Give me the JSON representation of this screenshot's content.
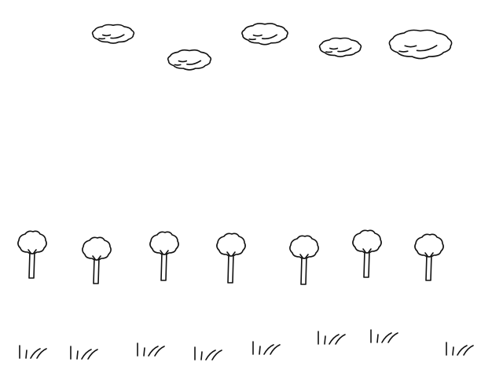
{
  "scene": {
    "background": "#ffffff",
    "ink_color": "#111111",
    "clouds": [
      {
        "name": "cloud-1"
      },
      {
        "name": "cloud-2"
      },
      {
        "name": "cloud-3"
      },
      {
        "name": "cloud-4"
      },
      {
        "name": "cloud-5"
      }
    ],
    "trees": [
      {
        "name": "tree-1"
      },
      {
        "name": "tree-2"
      },
      {
        "name": "tree-3"
      },
      {
        "name": "tree-4"
      },
      {
        "name": "tree-5"
      },
      {
        "name": "tree-6"
      },
      {
        "name": "tree-7"
      }
    ],
    "grass_tufts": [
      {
        "name": "grass-tuft-1"
      },
      {
        "name": "grass-tuft-2"
      },
      {
        "name": "grass-tuft-3"
      },
      {
        "name": "grass-tuft-4"
      },
      {
        "name": "grass-tuft-5"
      },
      {
        "name": "grass-tuft-6"
      },
      {
        "name": "grass-tuft-7"
      },
      {
        "name": "grass-tuft-8"
      }
    ]
  }
}
